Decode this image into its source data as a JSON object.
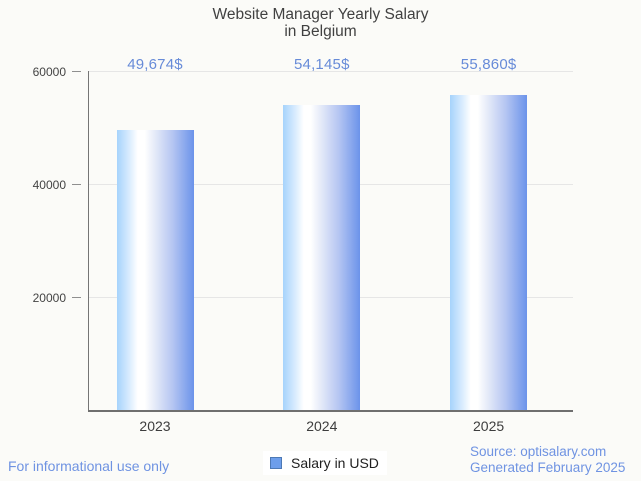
{
  "title": {
    "line1": "Website Manager Yearly Salary",
    "line2": "in Belgium"
  },
  "chart_data": {
    "type": "bar",
    "title": "Website Manager Yearly Salary in Belgium",
    "categories": [
      "2023",
      "2024",
      "2025"
    ],
    "series": [
      {
        "name": "Salary in USD",
        "values": [
          49674,
          54145,
          55860
        ]
      }
    ],
    "value_labels": [
      "49,674$",
      "54,145$",
      "55,860$"
    ],
    "xlabel": "",
    "ylabel": "",
    "ylim": [
      0,
      60000
    ],
    "yticks": {
      "values": [
        20000,
        40000,
        60000
      ],
      "labels": [
        "20000",
        "40000",
        "60000"
      ]
    },
    "grid": true,
    "legend": {
      "position": "bottom",
      "entries": [
        {
          "label": "Salary in USD",
          "color": "#6d9eeb"
        }
      ]
    }
  },
  "footer": {
    "left": "For informational use only",
    "source": "Source: optisalary.com",
    "generated": "Generated February 2025"
  },
  "colors": {
    "background": "#fbfbf8",
    "bar_gradient_left": "#a6d3fc",
    "bar_gradient_highlight": "#ffffff",
    "bar_gradient_right": "#6b93ea",
    "legend_marker": "#6d9eeb",
    "annotation_text": "#678bd8",
    "footer_text": "#6f93e2",
    "title_text": "#414141",
    "axis_text": "#444444",
    "gridline": "#e6e6e6",
    "axis_line": "#6f6f6f"
  }
}
